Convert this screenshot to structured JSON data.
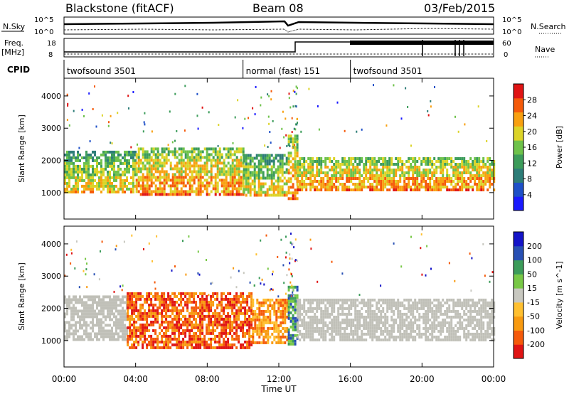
{
  "header": {
    "title": "Blackstone (fitACF)",
    "beam": "Beam 08",
    "date": "03/Feb/2015"
  },
  "labels": {
    "nsky": "N.Sky",
    "nsearch": "N.Search",
    "freq": "Freq.",
    "mhz": "[MHz]",
    "nave": "Nave",
    "cpid": "CPID",
    "nsky_ticks": [
      "10^5",
      "10^0"
    ],
    "nsearch_ticks": [
      "10^5",
      "10^0"
    ],
    "freq_ticks": [
      "18",
      "8"
    ],
    "nave_ticks": [
      "60",
      "0"
    ]
  },
  "cpid_segments": [
    {
      "label": "twofsound 3501",
      "start": 0,
      "end": 10
    },
    {
      "label": "normal (fast) 151",
      "start": 10,
      "end": 16
    },
    {
      "label": "twofsound 3501",
      "start": 16,
      "end": 24
    }
  ],
  "colors": {
    "power": [
      "#1a1aff",
      "#1e50c8",
      "#2d7d78",
      "#3c9c5a",
      "#6ec24a",
      "#dcd428",
      "#f8a010",
      "#f55a0a",
      "#e01414"
    ],
    "velocity": [
      "#e01414",
      "#f55a0a",
      "#f89a10",
      "#ffc030",
      "#c8c8c0",
      "#78c846",
      "#3c9c5a",
      "#2850b4",
      "#1414c8"
    ],
    "ground_scatter": "#c0c0b8"
  },
  "chart_data": [
    {
      "type": "heatmap",
      "panel": "power",
      "xlabel": "",
      "ylabel": "Slant Range [km]",
      "x_ticks": [
        "00:00",
        "04:00",
        "08:00",
        "12:00",
        "16:00",
        "20:00",
        "00:00"
      ],
      "x_range_hours": [
        0,
        24
      ],
      "y_range_km": [
        180,
        4550
      ],
      "y_ticks": [
        1000,
        2000,
        3000,
        4000
      ],
      "colorbar": {
        "label": "Power [dB]",
        "range": [
          0,
          32
        ],
        "ticks": [
          4,
          8,
          12,
          16,
          20,
          24,
          28
        ]
      },
      "scatter_bands": [
        {
          "hours": [
            0,
            4
          ],
          "ranges_km": [
            [
              1000,
              2300
            ]
          ],
          "level_db": 14
        },
        {
          "hours": [
            4,
            10
          ],
          "ranges_km": [
            [
              900,
              2400
            ]
          ],
          "level_db": 20
        },
        {
          "hours": [
            10,
            12.5
          ],
          "ranges_km": [
            [
              900,
              2200
            ]
          ],
          "level_db": 16
        },
        {
          "hours": [
            12.5,
            13
          ],
          "ranges_km": [
            [
              800,
              2800
            ]
          ],
          "level_db": 18
        },
        {
          "hours": [
            13,
            24
          ],
          "ranges_km": [
            [
              1100,
              2100
            ]
          ],
          "level_db": 20
        }
      ]
    },
    {
      "type": "heatmap",
      "panel": "velocity",
      "xlabel": "Time UT",
      "ylabel": "Slant Range [km]",
      "x_ticks": [
        "00:00",
        "04:00",
        "08:00",
        "12:00",
        "16:00",
        "20:00",
        "00:00"
      ],
      "x_range_hours": [
        0,
        24
      ],
      "y_range_km": [
        180,
        4550
      ],
      "y_ticks": [
        1000,
        2000,
        3000,
        4000
      ],
      "colorbar": {
        "label": "Velocity [m s^-1]",
        "tick_labels": [
          "200",
          "100",
          "50",
          "15",
          "-15",
          "-50",
          "-100",
          "-200"
        ]
      },
      "scatter_bands": [
        {
          "hours": [
            0,
            3.5
          ],
          "ranges_km": [
            [
              1000,
              2400
            ]
          ],
          "velocity": 0
        },
        {
          "hours": [
            3.5,
            10.5
          ],
          "ranges_km": [
            [
              800,
              2500
            ]
          ],
          "velocity": -80
        },
        {
          "hours": [
            10.5,
            12.5
          ],
          "ranges_km": [
            [
              900,
              2300
            ]
          ],
          "velocity": -40
        },
        {
          "hours": [
            12.5,
            13
          ],
          "ranges_km": [
            [
              900,
              2700
            ]
          ],
          "velocity": 60
        },
        {
          "hours": [
            13,
            24
          ],
          "ranges_km": [
            [
              1000,
              2300
            ]
          ],
          "velocity": 0
        }
      ]
    }
  ]
}
